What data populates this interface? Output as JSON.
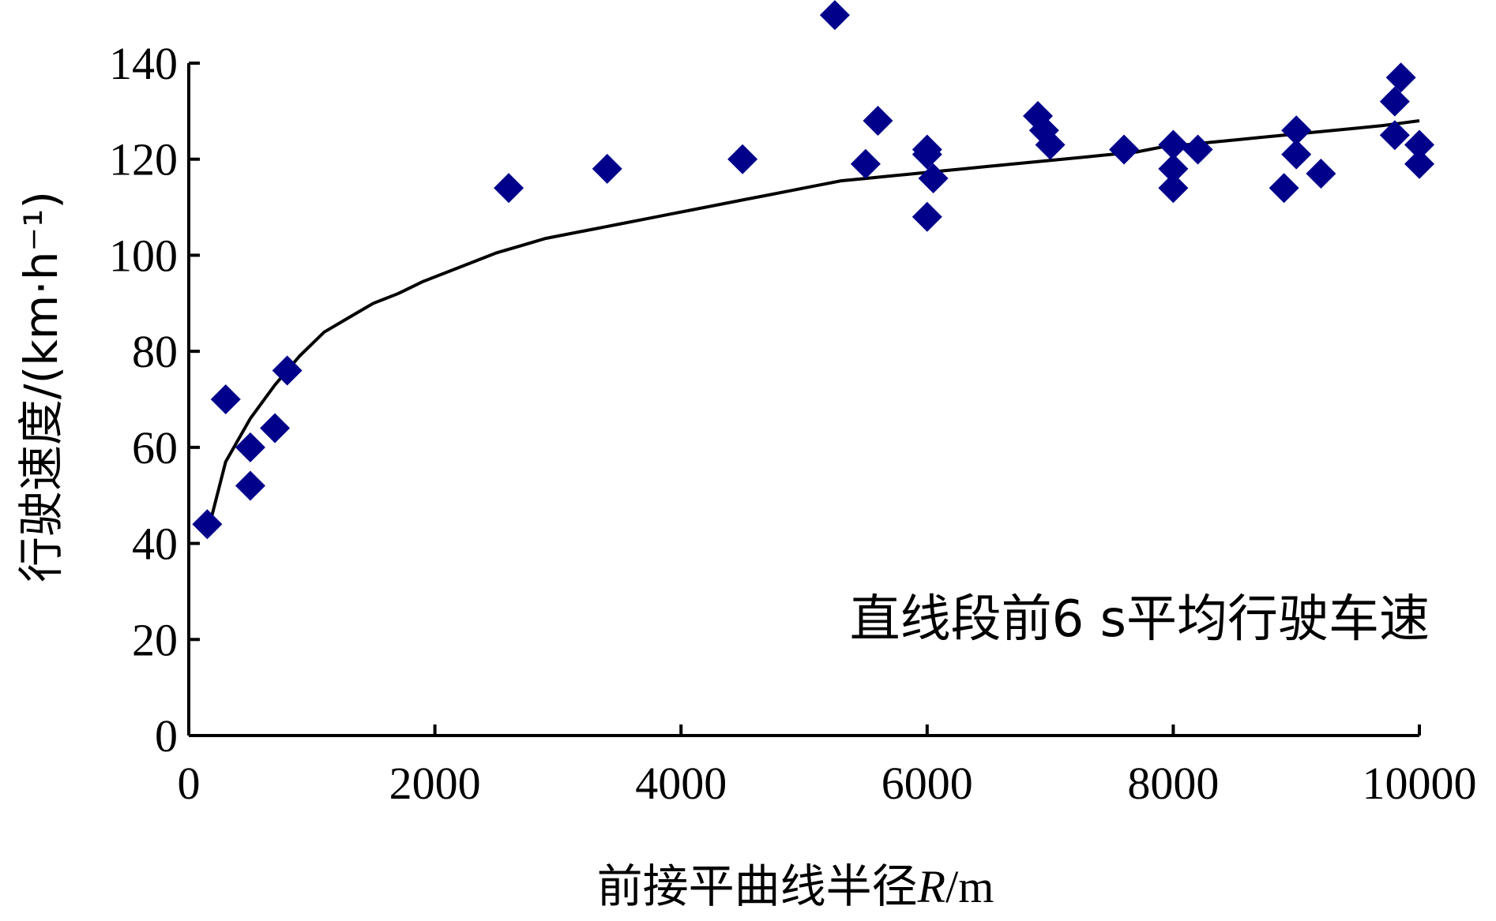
{
  "chart_data": {
    "type": "scatter",
    "xlabel_prefix": "前接平曲线半径",
    "xlabel_var": "R",
    "xlabel_unit": "/m",
    "ylabel": "行驶速度/(km·h⁻¹)",
    "annotation": "直线段前6 s平均行驶车速",
    "xlim": [
      0,
      10000
    ],
    "ylim": [
      0,
      140
    ],
    "xticks": [
      0,
      2000,
      4000,
      6000,
      8000,
      10000
    ],
    "yticks": [
      0,
      20,
      40,
      60,
      80,
      100,
      120,
      140
    ],
    "grid": false,
    "marker_color": "#00008B",
    "series": [
      {
        "marker": "diamond",
        "x": [
          150,
          300,
          500,
          500,
          700,
          800,
          2600,
          3400,
          4500,
          5250,
          5500,
          5600,
          6000,
          6000,
          6000,
          6050,
          6900,
          6950,
          7000,
          7600,
          8000,
          8000,
          8000,
          8200,
          8900,
          9000,
          9000,
          9200,
          9800,
          9800,
          9850,
          10000,
          10000
        ],
        "y": [
          44,
          70,
          60,
          52,
          64,
          76,
          114,
          118,
          120,
          150,
          119,
          128,
          122,
          121,
          108,
          116,
          129,
          126,
          123,
          122,
          123,
          118,
          114,
          122,
          114,
          126,
          121,
          117,
          125,
          132,
          137,
          123,
          119
        ]
      },
      {
        "name_hidden": "fit",
        "marker": "line",
        "x": [
          150,
          300,
          500,
          700,
          900,
          1100,
          1300,
          1500,
          1700,
          1900,
          2100,
          2300,
          2500,
          2700,
          2900,
          3100,
          3300,
          3500,
          3700,
          3900,
          4100,
          4300,
          4500,
          4700,
          4900,
          5100,
          5300,
          5500,
          5700,
          5900,
          6100,
          6300,
          6500,
          6700,
          6900,
          7100,
          7300,
          7500,
          7700,
          7900,
          8100,
          8300,
          8500,
          8700,
          8900,
          9100,
          9300,
          9500,
          9700,
          10000
        ],
        "y": [
          42,
          57,
          66,
          73,
          79,
          84,
          87,
          90,
          92,
          94.5,
          96.5,
          98.5,
          100.5,
          102,
          103.5,
          104.5,
          105.5,
          106.5,
          107.5,
          108.5,
          109.5,
          110.5,
          111.5,
          112.5,
          113.5,
          114.5,
          115.5,
          116,
          116.5,
          117,
          117.5,
          118,
          118.5,
          119,
          119.5,
          120,
          120.5,
          121,
          121.5,
          122.5,
          123,
          123.5,
          124,
          124.5,
          125,
          125.5,
          126,
          126.5,
          127,
          128
        ]
      }
    ]
  }
}
